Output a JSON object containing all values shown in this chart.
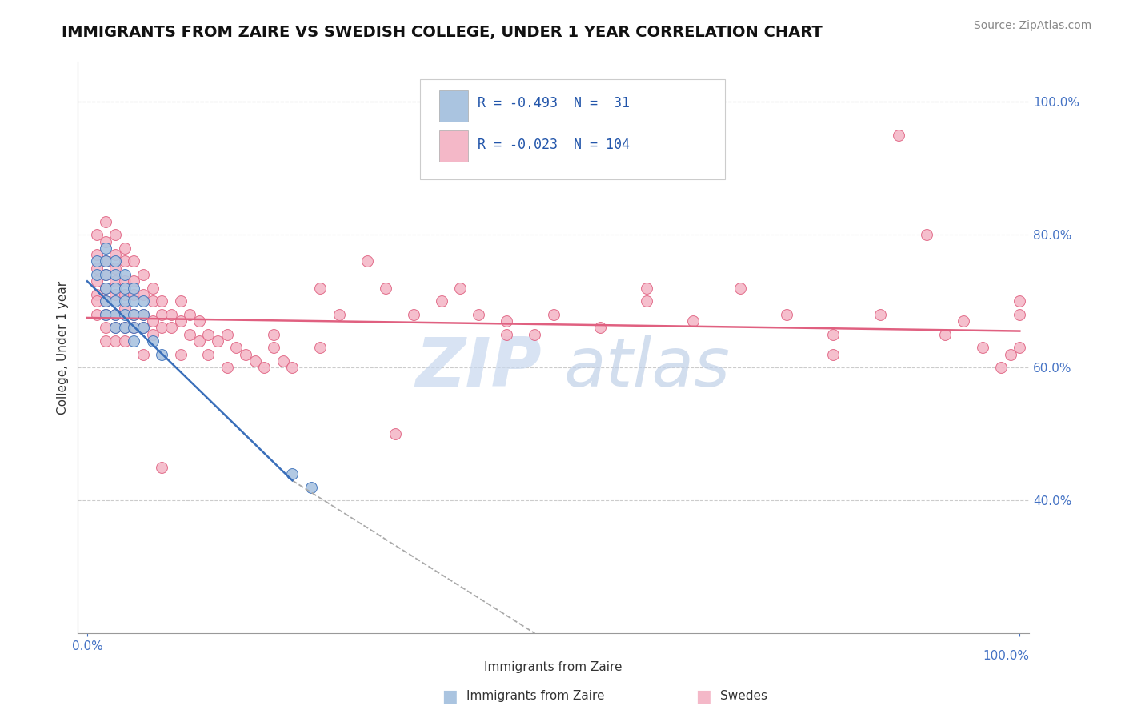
{
  "title": "IMMIGRANTS FROM ZAIRE VS SWEDISH COLLEGE, UNDER 1 YEAR CORRELATION CHART",
  "source_text": "Source: ZipAtlas.com",
  "xlabel": "Immigrants from Zaire",
  "ylabel": "College, Under 1 year",
  "xlim": [
    0.0,
    0.1
  ],
  "ylim": [
    0.2,
    1.05
  ],
  "x_ticks": [
    0.0,
    0.02,
    0.04,
    0.06,
    0.08,
    0.1
  ],
  "x_tick_labels": [
    "0.0%",
    "",
    "",
    "",
    "",
    ""
  ],
  "y_ticks_right": [
    0.4,
    0.6,
    0.8,
    1.0
  ],
  "y_tick_labels_right": [
    "40.0%",
    "60.0%",
    "80.0%",
    "100.0%"
  ],
  "color_blue": "#aac4e0",
  "color_pink": "#f4b8c8",
  "line_blue": "#3a6fba",
  "line_pink": "#e06080",
  "watermark_color1": "#c4d8ee",
  "watermark_color2": "#b8cce0",
  "background_color": "#ffffff",
  "title_fontsize": 14,
  "source_fontsize": 10,
  "legend_blue_label": "R = -0.493  N =  31",
  "legend_pink_label": "R = -0.023  N = 104",
  "blue_line_x": [
    0.0,
    0.022
  ],
  "blue_line_y": [
    0.73,
    0.43
  ],
  "gray_line_x": [
    0.022,
    0.048
  ],
  "gray_line_y": [
    0.43,
    0.2
  ],
  "pink_line_x": [
    0.0,
    0.1
  ],
  "pink_line_y": [
    0.675,
    0.655
  ],
  "zaire_x": [
    0.001,
    0.001,
    0.002,
    0.002,
    0.002,
    0.002,
    0.002,
    0.002,
    0.003,
    0.003,
    0.003,
    0.003,
    0.003,
    0.003,
    0.004,
    0.004,
    0.004,
    0.004,
    0.004,
    0.005,
    0.005,
    0.005,
    0.005,
    0.005,
    0.006,
    0.006,
    0.006,
    0.007,
    0.008,
    0.022,
    0.024
  ],
  "zaire_y": [
    0.76,
    0.74,
    0.78,
    0.76,
    0.74,
    0.72,
    0.7,
    0.68,
    0.76,
    0.74,
    0.72,
    0.7,
    0.68,
    0.66,
    0.74,
    0.72,
    0.7,
    0.68,
    0.66,
    0.72,
    0.7,
    0.68,
    0.66,
    0.64,
    0.7,
    0.68,
    0.66,
    0.64,
    0.62,
    0.44,
    0.42
  ],
  "swedes_x": [
    0.001,
    0.001,
    0.001,
    0.001,
    0.001,
    0.001,
    0.001,
    0.002,
    0.002,
    0.002,
    0.002,
    0.002,
    0.002,
    0.002,
    0.002,
    0.002,
    0.003,
    0.003,
    0.003,
    0.003,
    0.003,
    0.003,
    0.003,
    0.003,
    0.004,
    0.004,
    0.004,
    0.004,
    0.004,
    0.004,
    0.004,
    0.005,
    0.005,
    0.005,
    0.005,
    0.005,
    0.006,
    0.006,
    0.006,
    0.006,
    0.007,
    0.007,
    0.007,
    0.007,
    0.008,
    0.008,
    0.008,
    0.009,
    0.009,
    0.01,
    0.01,
    0.011,
    0.011,
    0.012,
    0.012,
    0.013,
    0.013,
    0.014,
    0.015,
    0.016,
    0.017,
    0.018,
    0.019,
    0.02,
    0.021,
    0.022,
    0.025,
    0.027,
    0.03,
    0.032,
    0.035,
    0.038,
    0.04,
    0.042,
    0.045,
    0.048,
    0.05,
    0.055,
    0.06,
    0.065,
    0.07,
    0.075,
    0.08,
    0.085,
    0.087,
    0.09,
    0.092,
    0.094,
    0.096,
    0.098,
    0.099,
    0.1,
    0.1,
    0.1,
    0.08,
    0.06,
    0.045,
    0.033,
    0.025,
    0.02,
    0.015,
    0.01,
    0.008,
    0.006
  ],
  "swedes_y": [
    0.8,
    0.77,
    0.75,
    0.73,
    0.71,
    0.7,
    0.68,
    0.82,
    0.79,
    0.76,
    0.74,
    0.72,
    0.7,
    0.68,
    0.66,
    0.64,
    0.8,
    0.77,
    0.75,
    0.73,
    0.71,
    0.68,
    0.66,
    0.64,
    0.78,
    0.76,
    0.73,
    0.71,
    0.69,
    0.66,
    0.64,
    0.76,
    0.73,
    0.71,
    0.68,
    0.66,
    0.74,
    0.71,
    0.68,
    0.66,
    0.72,
    0.7,
    0.67,
    0.65,
    0.7,
    0.68,
    0.66,
    0.68,
    0.66,
    0.7,
    0.67,
    0.68,
    0.65,
    0.67,
    0.64,
    0.65,
    0.62,
    0.64,
    0.65,
    0.63,
    0.62,
    0.61,
    0.6,
    0.63,
    0.61,
    0.6,
    0.72,
    0.68,
    0.76,
    0.72,
    0.68,
    0.7,
    0.72,
    0.68,
    0.67,
    0.65,
    0.68,
    0.66,
    0.7,
    0.67,
    0.72,
    0.68,
    0.65,
    0.68,
    0.95,
    0.8,
    0.65,
    0.67,
    0.63,
    0.6,
    0.62,
    0.7,
    0.68,
    0.63,
    0.62,
    0.72,
    0.65,
    0.5,
    0.63,
    0.65,
    0.6,
    0.62,
    0.45,
    0.62
  ]
}
